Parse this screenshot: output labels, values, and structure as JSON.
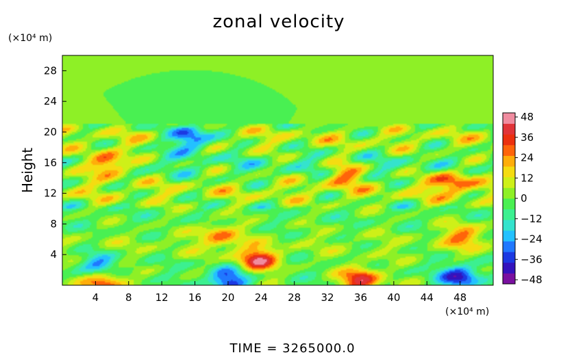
{
  "chart_data": {
    "type": "heatmap",
    "title": "zonal velocity",
    "ylabel": "Height",
    "y_units": "(×10⁴ m)",
    "x_units": "(×10⁴ m)",
    "xlim": [
      0,
      52
    ],
    "ylim": [
      0,
      30
    ],
    "x_ticks": [
      "4",
      "8",
      "12",
      "16",
      "20",
      "24",
      "28",
      "32",
      "36",
      "40",
      "44",
      "48"
    ],
    "y_ticks": [
      "4",
      "8",
      "12",
      "16",
      "20",
      "24",
      "28"
    ],
    "colorbar": {
      "range": [
        -48,
        48
      ],
      "ticks": [
        "48",
        "36",
        "24",
        "12",
        "0",
        "−12",
        "−24",
        "−36",
        "−48"
      ],
      "levels": 16
    },
    "colormap": [
      "#7a10a0",
      "#1a14c8",
      "#1f64ff",
      "#23c8ff",
      "#3cf0b4",
      "#3cf05a",
      "#9bf01e",
      "#f0f014",
      "#ffb40a",
      "#ff500a",
      "#dc1414",
      "#f08ca0"
    ],
    "features": [
      {
        "x": 5,
        "y": 0.6,
        "value": 36
      },
      {
        "x": 20,
        "y": 0.6,
        "value": -36
      },
      {
        "x": 36,
        "y": 0.8,
        "value": 40
      },
      {
        "x": 48,
        "y": 1.0,
        "value": -36
      },
      {
        "x": 4.5,
        "y": 2.5,
        "value": -26
      },
      {
        "x": 23.5,
        "y": 3.2,
        "value": 40
      },
      {
        "x": 19,
        "y": 6.5,
        "value": 24
      },
      {
        "x": 48.5,
        "y": 6.5,
        "value": 24
      },
      {
        "x": 5.5,
        "y": 15.8,
        "value": 40
      },
      {
        "x": 15.5,
        "y": 19.2,
        "value": -42
      },
      {
        "x": 34,
        "y": 14.5,
        "value": 24
      },
      {
        "x": 47,
        "y": 13.5,
        "value": 32
      }
    ],
    "footer": "TIME  =  3265000.0"
  }
}
